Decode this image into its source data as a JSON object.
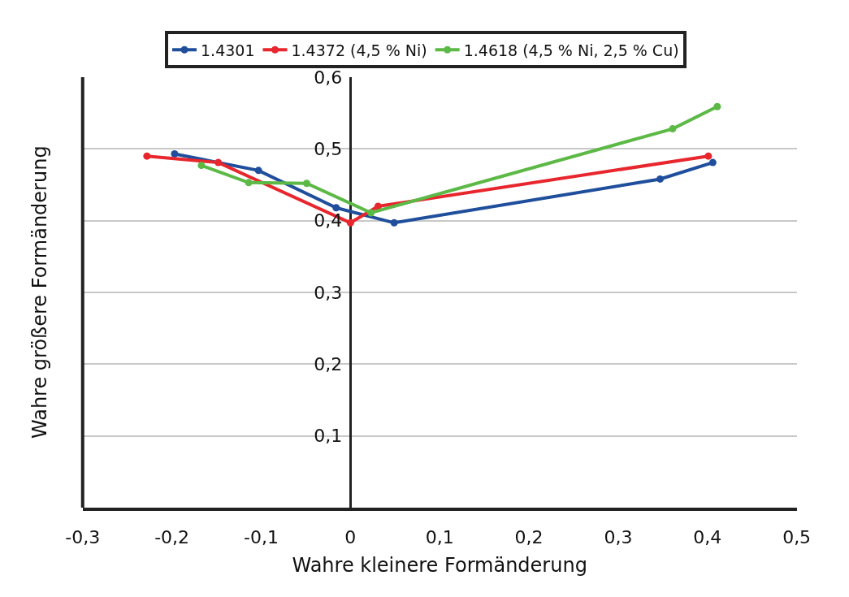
{
  "chart_data": {
    "type": "line",
    "xlabel": "Wahre kleinere Formänderung",
    "ylabel": "Wahre größere Formänderung",
    "xlim": [
      -0.3,
      0.5
    ],
    "xticks": [
      {
        "value": -0.3,
        "label": "-0,3"
      },
      {
        "value": -0.2,
        "label": "-0,2"
      },
      {
        "value": -0.1,
        "label": "-0,1"
      },
      {
        "value": 0,
        "label": "0"
      },
      {
        "value": 0.1,
        "label": "0,1"
      },
      {
        "value": 0.2,
        "label": "0,2"
      },
      {
        "value": 0.3,
        "label": "0,3"
      },
      {
        "value": 0.4,
        "label": "0,4"
      },
      {
        "value": 0.5,
        "label": "0,5"
      }
    ],
    "ylim": [
      0,
      0.6
    ],
    "yticks": [
      {
        "value": 0.1,
        "label": "0,1"
      },
      {
        "value": 0.2,
        "label": "0,2"
      },
      {
        "value": 0.3,
        "label": "0,3"
      },
      {
        "value": 0.4,
        "label": "0,4"
      },
      {
        "value": 0.5,
        "label": "0,5"
      },
      {
        "value": 0.6,
        "label": "0,6"
      }
    ],
    "grid": "y",
    "legend": "top",
    "marker": "circle",
    "line_style": "solid",
    "series": [
      {
        "name": "1.4301",
        "color": "#1f4e9c",
        "x": [
          -0.197,
          -0.103,
          -0.016,
          0.049,
          0.347,
          0.406
        ],
        "values": [
          0.493,
          0.47,
          0.418,
          0.397,
          0.458,
          0.481
        ]
      },
      {
        "name": "1.4372 (4,5 % Ni)",
        "color": "#e8262d",
        "x": [
          -0.228,
          -0.148,
          0.0,
          0.031,
          0.401
        ],
        "values": [
          0.49,
          0.481,
          0.397,
          0.42,
          0.49
        ]
      },
      {
        "name": "1.4618 (4,5 % Ni, 2,5 % Cu)",
        "color": "#5cb946",
        "x": [
          -0.167,
          -0.114,
          -0.049,
          0.023,
          0.361,
          0.411
        ],
        "values": [
          0.477,
          0.453,
          0.452,
          0.411,
          0.528,
          0.559
        ]
      }
    ]
  }
}
